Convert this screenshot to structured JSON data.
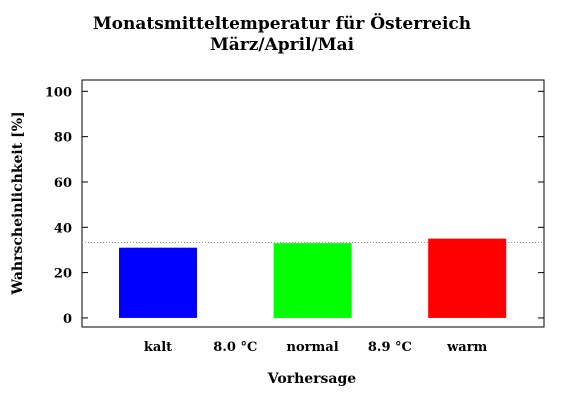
{
  "chart_data": {
    "type": "bar",
    "title": "Monatsmitteltemperatur für Österreich",
    "subtitle": "März/April/Mai",
    "xlabel": "Vorhersage",
    "ylabel": "Wahrscheinlichkeit [%]",
    "ylim": [
      -4,
      105
    ],
    "yticks": [
      0,
      20,
      40,
      60,
      80,
      100
    ],
    "categories": [
      "kalt",
      "normal",
      "warm"
    ],
    "values": [
      31,
      33,
      35
    ],
    "colors": [
      "#0000ff",
      "#00ff00",
      "#ff0000"
    ],
    "threshold_labels": [
      "8.0 °C",
      "8.9 °C"
    ],
    "reference_line": 33.3,
    "grid": false
  }
}
